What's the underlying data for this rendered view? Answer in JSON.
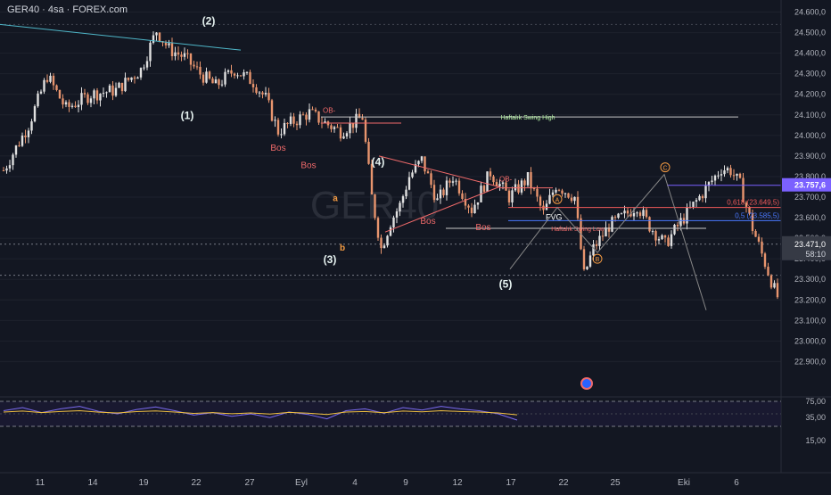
{
  "header": {
    "text": "GER40 · 4sa · FOREX.com"
  },
  "watermark": "GER40",
  "colors": {
    "background": "#131722",
    "up": "#e0e0e0",
    "down": "#e8956e",
    "wave": "#e6f2f0",
    "bos": "#f06a6a",
    "ob": "#f06a6a",
    "fib618": "#f05a5a",
    "fib05": "#4a78ff",
    "swing_high": "#b9f6a8",
    "current_price": "#7b61ff",
    "rsi": "#7b6bf0",
    "rsi_ma": "#f0c040",
    "abc": "#f59b42"
  },
  "chart_data": {
    "type": "candlestick",
    "symbol": "GER40",
    "timeframe": "4sa",
    "source": "FOREX.com",
    "y_range": [
      22750,
      24650
    ],
    "x_ticks": [
      "11",
      "14",
      "19",
      "22",
      "27",
      "Eyl",
      "4",
      "9",
      "12",
      "17",
      "22",
      "25",
      "Eki",
      "6"
    ],
    "y_ticks": [
      "24.600,0",
      "24.500,0",
      "24.400,0",
      "24.300,0",
      "24.200,0",
      "24.100,0",
      "24.000,0",
      "23.900,0",
      "23.800,0",
      "23.700,0",
      "23.600,0",
      "23.500,0",
      "23.400,0",
      "23.300,0",
      "23.200,0",
      "23.100,0",
      "23.000,0",
      "22.900,0"
    ],
    "price_path": [
      [
        0,
        23830
      ],
      [
        8,
        24050
      ],
      [
        14,
        24290
      ],
      [
        20,
        24130
      ],
      [
        28,
        24200
      ],
      [
        36,
        24220
      ],
      [
        44,
        24320
      ],
      [
        49,
        24510
      ],
      [
        53,
        24420
      ],
      [
        58,
        24380
      ],
      [
        63,
        24300
      ],
      [
        68,
        24240
      ],
      [
        74,
        24320
      ],
      [
        80,
        24260
      ],
      [
        84,
        24180
      ],
      [
        88,
        24020
      ],
      [
        92,
        24060
      ],
      [
        98,
        24110
      ],
      [
        103,
        24060
      ],
      [
        108,
        24020
      ],
      [
        115,
        24090
      ],
      [
        118,
        23700
      ],
      [
        121,
        23450
      ],
      [
        124,
        23580
      ],
      [
        127,
        23660
      ],
      [
        130,
        23800
      ],
      [
        134,
        23880
      ],
      [
        139,
        23680
      ],
      [
        144,
        23800
      ],
      [
        150,
        23640
      ],
      [
        156,
        23820
      ],
      [
        162,
        23700
      ],
      [
        168,
        23790
      ],
      [
        173,
        23620
      ],
      [
        177,
        23760
      ],
      [
        183,
        23700
      ],
      [
        186,
        23320
      ],
      [
        189,
        23450
      ],
      [
        194,
        23560
      ],
      [
        199,
        23610
      ],
      [
        203,
        23660
      ],
      [
        207,
        23560
      ],
      [
        212,
        23470
      ],
      [
        217,
        23580
      ],
      [
        222,
        23680
      ],
      [
        226,
        23760
      ],
      [
        230,
        23840
      ],
      [
        233,
        23830
      ],
      [
        236,
        23760
      ],
      [
        240,
        23550
      ],
      [
        244,
        23380
      ],
      [
        247,
        23250
      ],
      [
        249,
        23180
      ]
    ],
    "ohlc_last": {
      "price": "23.471,0",
      "countdown": "58:10",
      "high_marker": "23.757,6"
    },
    "levels": [
      {
        "name": "Haftalık Swing High",
        "price": 24090
      },
      {
        "name": "Haftalık Swing Low",
        "price": 23548
      },
      {
        "name": "0,618 (23.649,5)",
        "price": 23649.5
      },
      {
        "name": "0,5 (23.585,5)",
        "price": 23585.5
      }
    ],
    "wave_labels": [
      "(1)",
      "(2)",
      "(3)",
      "(4)",
      "(5)",
      "a",
      "b"
    ],
    "abc_labels": [
      "A",
      "B",
      "C"
    ],
    "structure_labels": [
      "Bos",
      "Bos",
      "Bos",
      "Bos",
      "OB-",
      "OB-",
      "FVG"
    ],
    "rsi": {
      "y_ticks": [
        "75,00",
        "35,00",
        "15,00"
      ],
      "values": [
        55,
        60,
        52,
        58,
        62,
        54,
        50,
        57,
        61,
        55,
        48,
        52,
        46,
        50,
        44,
        53,
        49,
        42,
        55,
        58,
        51,
        60,
        56,
        62,
        58,
        55,
        50,
        40
      ]
    }
  }
}
